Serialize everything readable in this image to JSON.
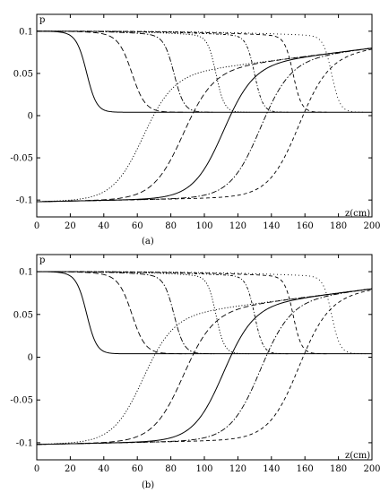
{
  "chart_data": [
    {
      "type": "line",
      "panel_label": "(a)",
      "ylabel": "p",
      "xlabel": "z(cm)",
      "xlim": [
        0,
        200
      ],
      "ylim": [
        -0.12,
        0.12
      ],
      "xticks": [
        0,
        20,
        40,
        60,
        80,
        100,
        120,
        140,
        160,
        180,
        200
      ],
      "yticks": [
        0.1,
        0.05,
        0,
        -0.05,
        -0.1
      ],
      "ytick_labels": [
        "0.1",
        "0.05",
        "0",
        "-0.05",
        "-0.1"
      ],
      "grid": false,
      "series": [
        {
          "style": "solid",
          "kind": "falling",
          "center": 30,
          "width": 3.0
        },
        {
          "style": "dashed",
          "kind": "falling",
          "center": 57,
          "width": 4.0
        },
        {
          "style": "dashdot",
          "kind": "falling",
          "center": 82,
          "width": 3.0
        },
        {
          "style": "dotted",
          "kind": "falling",
          "center": 107,
          "width": 2.5
        },
        {
          "style": "dashdot2",
          "kind": "falling",
          "center": 130,
          "width": 2.5
        },
        {
          "style": "dashed2",
          "kind": "falling",
          "center": 153,
          "width": 2.5
        },
        {
          "style": "dotted2",
          "kind": "falling",
          "center": 176,
          "width": 2.5
        },
        {
          "style": "dotted",
          "kind": "rising",
          "center": 63,
          "width": 9
        },
        {
          "style": "dashed",
          "kind": "rising",
          "center": 87,
          "width": 9
        },
        {
          "style": "solid",
          "kind": "rising",
          "center": 111,
          "width": 9
        },
        {
          "style": "dashdot",
          "kind": "rising",
          "center": 133,
          "width": 9
        },
        {
          "style": "dashed2",
          "kind": "rising",
          "center": 156,
          "width": 9
        }
      ]
    },
    {
      "type": "line",
      "panel_label": "(b)",
      "ylabel": "p",
      "xlabel": "z(cm)",
      "xlim": [
        0,
        200
      ],
      "ylim": [
        -0.12,
        0.12
      ],
      "xticks": [
        0,
        20,
        40,
        60,
        80,
        100,
        120,
        140,
        160,
        180,
        200
      ],
      "yticks": [
        0.1,
        0.05,
        0,
        -0.05,
        -0.1
      ],
      "ytick_labels": [
        "0.1",
        "0.05",
        "0",
        "-0.05",
        "-0.1"
      ],
      "grid": false,
      "series": [
        {
          "style": "solid",
          "kind": "falling",
          "center": 30,
          "width": 3.0
        },
        {
          "style": "dashed",
          "kind": "falling",
          "center": 57,
          "width": 4.0
        },
        {
          "style": "dashdot",
          "kind": "falling",
          "center": 82,
          "width": 3.0
        },
        {
          "style": "dotted",
          "kind": "falling",
          "center": 107,
          "width": 2.5
        },
        {
          "style": "dashdot2",
          "kind": "falling",
          "center": 130,
          "width": 2.5
        },
        {
          "style": "dashed2",
          "kind": "falling",
          "center": 153,
          "width": 2.5
        },
        {
          "style": "dotted2",
          "kind": "falling",
          "center": 176,
          "width": 2.5
        },
        {
          "style": "dotted",
          "kind": "rising",
          "center": 63,
          "width": 9
        },
        {
          "style": "dashed",
          "kind": "rising",
          "center": 87,
          "width": 9
        },
        {
          "style": "solid",
          "kind": "rising",
          "center": 111,
          "width": 9
        },
        {
          "style": "dashdot",
          "kind": "rising",
          "center": 133,
          "width": 9
        },
        {
          "style": "dashed2",
          "kind": "rising",
          "center": 156,
          "width": 9
        }
      ]
    }
  ]
}
